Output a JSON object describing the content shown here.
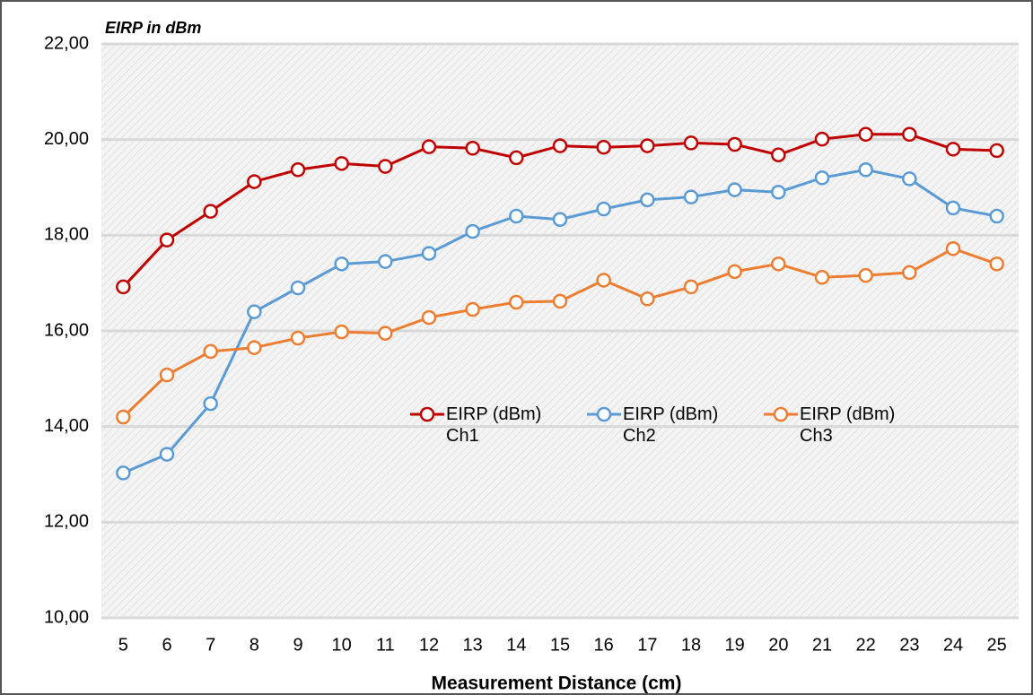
{
  "chart_data": {
    "type": "line",
    "y_label": "EIRP in dBm",
    "x_label": "Measurement Distance (cm)",
    "categories": [
      "5",
      "6",
      "7",
      "8",
      "9",
      "10",
      "11",
      "12",
      "13",
      "14",
      "15",
      "16",
      "17",
      "18",
      "19",
      "20",
      "21",
      "22",
      "23",
      "24",
      "25"
    ],
    "series": [
      {
        "name": "EIRP (dBm) Ch1",
        "color": "#c00000",
        "values": [
          16.92,
          17.9,
          18.5,
          19.12,
          19.37,
          19.5,
          19.44,
          19.85,
          19.82,
          19.62,
          19.87,
          19.84,
          19.87,
          19.93,
          19.9,
          19.68,
          20.01,
          20.11,
          20.11,
          19.8,
          19.77
        ]
      },
      {
        "name": "EIRP (dBm) Ch2",
        "color": "#5b9bd5",
        "values": [
          13.03,
          13.42,
          14.48,
          16.4,
          16.9,
          17.4,
          17.45,
          17.62,
          18.08,
          18.4,
          18.33,
          18.55,
          18.74,
          18.8,
          18.95,
          18.9,
          19.2,
          19.37,
          19.18,
          18.57,
          18.4
        ]
      },
      {
        "name": "EIRP (dBm) Ch3",
        "color": "#ed7d31",
        "values": [
          14.2,
          15.08,
          15.57,
          15.65,
          15.85,
          15.98,
          15.95,
          16.28,
          16.45,
          16.6,
          16.62,
          17.06,
          16.67,
          16.92,
          17.24,
          17.4,
          17.12,
          17.16,
          17.22,
          17.72,
          17.4
        ]
      }
    ],
    "ylim": [
      10,
      22
    ],
    "yticks": [
      {
        "value": 10,
        "label": "10,00"
      },
      {
        "value": 12,
        "label": "12,00"
      },
      {
        "value": 14,
        "label": "14,00"
      },
      {
        "value": 16,
        "label": "16,00"
      },
      {
        "value": 18,
        "label": "18,00"
      },
      {
        "value": 20,
        "label": "20,00"
      },
      {
        "value": 22,
        "label": "22,00"
      }
    ],
    "grid": true
  }
}
